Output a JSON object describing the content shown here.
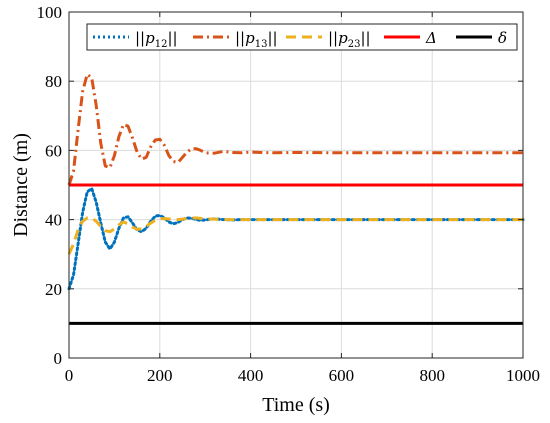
{
  "chart_data": {
    "type": "line",
    "title": "",
    "xlabel": "Time (s)",
    "ylabel": "Distance (m)",
    "xlim": [
      0,
      1000
    ],
    "ylim": [
      0,
      100
    ],
    "xticks": [
      0,
      200,
      400,
      600,
      800,
      1000
    ],
    "yticks": [
      0,
      20,
      40,
      60,
      80,
      100
    ],
    "grid": true,
    "legend_position": "top",
    "series": [
      {
        "name": "||p12||",
        "label_main": "||p",
        "label_sub": "12",
        "label_end": "||",
        "color": "#0072BD",
        "style": "dotted",
        "x": [
          0,
          10,
          20,
          30,
          40,
          50,
          60,
          70,
          80,
          90,
          100,
          110,
          120,
          130,
          140,
          150,
          160,
          170,
          180,
          190,
          200,
          210,
          220,
          230,
          240,
          250,
          260,
          270,
          280,
          290,
          300,
          320,
          340,
          360,
          380,
          400,
          450,
          500,
          600,
          700,
          800,
          900,
          1000
        ],
        "y": [
          20,
          24,
          33,
          42,
          48,
          49,
          45,
          39,
          33.5,
          31.5,
          33.5,
          37.5,
          40.5,
          40.8,
          39,
          37,
          36.5,
          37.5,
          39.5,
          41,
          41.2,
          40.5,
          39.3,
          38.8,
          39.2,
          40,
          40.5,
          40.4,
          40,
          39.8,
          39.9,
          40.2,
          40,
          39.9,
          40,
          40,
          40,
          40,
          40,
          40,
          40,
          40,
          40
        ]
      },
      {
        "name": "||p13||",
        "label_main": "||p",
        "label_sub": "13",
        "label_end": "||",
        "color": "#D95319",
        "style": "dashdot",
        "x": [
          0,
          10,
          20,
          30,
          40,
          50,
          60,
          70,
          80,
          90,
          100,
          110,
          120,
          130,
          140,
          150,
          160,
          170,
          180,
          190,
          200,
          210,
          220,
          230,
          240,
          250,
          260,
          270,
          280,
          290,
          300,
          320,
          340,
          360,
          380,
          400,
          450,
          500,
          600,
          700,
          800,
          900,
          1000
        ],
        "y": [
          50,
          54,
          66,
          77,
          82,
          81,
          73,
          62,
          55.5,
          55,
          58.5,
          64,
          67.5,
          67,
          63.5,
          59.5,
          57.5,
          58,
          61,
          63,
          63.2,
          61.5,
          58.5,
          56.8,
          56.5,
          58,
          59.5,
          60.5,
          60.5,
          60,
          59.3,
          59.2,
          59.7,
          59.4,
          59.3,
          59.5,
          59.3,
          59.4,
          59.3,
          59.3,
          59.3,
          59.3,
          59.3
        ]
      },
      {
        "name": "||p23||",
        "label_main": "||p",
        "label_sub": "23",
        "label_end": "||",
        "color": "#EDB120",
        "style": "dashed",
        "x": [
          0,
          10,
          20,
          30,
          40,
          50,
          60,
          70,
          80,
          90,
          100,
          110,
          120,
          130,
          140,
          150,
          160,
          170,
          180,
          190,
          200,
          220,
          240,
          260,
          280,
          300,
          350,
          400,
          500,
          600,
          700,
          800,
          900,
          1000
        ],
        "y": [
          30,
          33,
          37,
          39.5,
          40.5,
          40.5,
          39.5,
          38,
          36.8,
          36.5,
          37.3,
          38.5,
          39.3,
          38.8,
          37.8,
          37.2,
          37.3,
          38,
          39,
          39.8,
          40.3,
          40.2,
          40,
          40.3,
          40.5,
          40.2,
          40,
          40,
          40,
          40,
          40,
          40,
          40,
          40
        ]
      },
      {
        "name": "Δ",
        "label_main": "Δ",
        "label_sub": "",
        "label_end": "",
        "color": "#FF0000",
        "style": "solid",
        "x": [
          0,
          1000
        ],
        "y": [
          50,
          50
        ]
      },
      {
        "name": "δ",
        "label_main": "δ",
        "label_sub": "",
        "label_end": "",
        "color": "#000000",
        "style": "solid",
        "x": [
          0,
          1000
        ],
        "y": [
          10,
          10
        ]
      }
    ]
  }
}
